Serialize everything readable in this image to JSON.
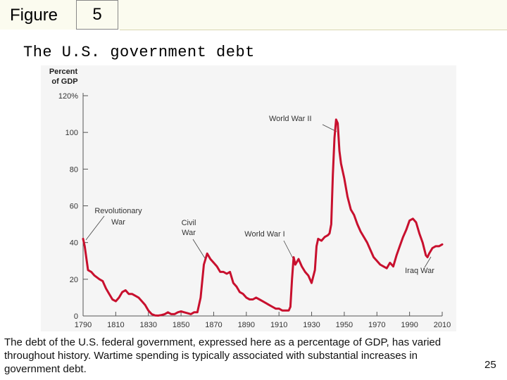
{
  "slide": {
    "figure_label": "Figure",
    "figure_number": "5",
    "title": "The U.S. government debt",
    "caption": "The debt of the U.S. federal government, expressed here as a percentage of GDP, has varied throughout history. Wartime spending is typically associated with substantial increases in government debt.",
    "page_number": "25"
  },
  "chart_data": {
    "type": "line",
    "title": "",
    "xlabel": "",
    "ylabel": "Percent of GDP",
    "ylabel_lines": [
      "Percent",
      "of GDP"
    ],
    "xlim": [
      1790,
      2010
    ],
    "ylim": [
      0,
      120
    ],
    "x_ticks": [
      1790,
      1810,
      1830,
      1850,
      1870,
      1890,
      1910,
      1930,
      1950,
      1970,
      1990,
      2010
    ],
    "y_ticks": [
      {
        "value": 0,
        "label": "0"
      },
      {
        "value": 20,
        "label": "20"
      },
      {
        "value": 40,
        "label": "40"
      },
      {
        "value": 60,
        "label": "60"
      },
      {
        "value": 80,
        "label": "80"
      },
      {
        "value": 100,
        "label": "100"
      },
      {
        "value": 120,
        "label": "120%"
      }
    ],
    "grid": false,
    "line_color": "#c8102e",
    "series": [
      {
        "x": [
          1790,
          1791,
          1793,
          1795,
          1797,
          1800,
          1802,
          1804,
          1806,
          1808,
          1810,
          1812,
          1814,
          1816,
          1818,
          1820,
          1822,
          1824,
          1826,
          1828,
          1830,
          1832,
          1834,
          1836,
          1838,
          1840,
          1842,
          1844,
          1846,
          1848,
          1850,
          1852,
          1854,
          1856,
          1858,
          1860,
          1862,
          1864,
          1866,
          1868,
          1870,
          1872,
          1874,
          1876,
          1878,
          1880,
          1882,
          1884,
          1886,
          1888,
          1890,
          1892,
          1894,
          1896,
          1898,
          1900,
          1902,
          1904,
          1906,
          1908,
          1910,
          1912,
          1914,
          1916,
          1917,
          1918,
          1919,
          1920,
          1922,
          1924,
          1926,
          1928,
          1930,
          1932,
          1933,
          1934,
          1936,
          1938,
          1940,
          1941,
          1942,
          1943,
          1944,
          1945,
          1946,
          1947,
          1948,
          1950,
          1952,
          1954,
          1956,
          1958,
          1960,
          1962,
          1964,
          1966,
          1968,
          1970,
          1972,
          1974,
          1976,
          1978,
          1980,
          1982,
          1984,
          1986,
          1988,
          1990,
          1992,
          1994,
          1996,
          1998,
          2000,
          2001,
          2002,
          2004,
          2006,
          2008,
          2010
        ],
        "y": [
          42,
          38,
          25,
          24,
          22,
          20,
          19,
          15,
          12,
          9,
          8,
          10,
          13,
          14,
          12,
          12,
          11,
          10,
          8,
          6,
          3,
          1,
          0.3,
          0.2,
          0.5,
          1,
          2,
          1,
          1,
          2,
          2.5,
          2,
          1.5,
          1,
          2,
          2,
          10,
          28,
          34,
          31,
          29,
          27,
          24,
          24,
          23,
          24,
          18,
          16,
          13,
          12,
          10,
          9,
          9,
          10,
          9,
          8,
          7,
          6,
          5,
          4,
          4,
          3,
          3,
          3,
          5,
          20,
          32,
          28,
          31,
          27,
          24,
          22,
          18,
          25,
          38,
          42,
          41,
          43,
          44,
          45,
          50,
          77,
          97,
          107,
          105,
          90,
          83,
          75,
          65,
          58,
          55,
          50,
          46,
          43,
          40,
          36,
          32,
          30,
          28,
          27,
          26,
          29,
          27,
          33,
          38,
          43,
          47,
          52,
          53,
          51,
          45,
          40,
          33,
          32,
          34,
          37,
          38,
          38,
          39
        ]
      }
    ],
    "annotations": [
      {
        "lines": [
          "World War II"
        ]
      },
      {
        "lines": [
          "Revolutionary",
          "War"
        ]
      },
      {
        "lines": [
          "Civil",
          "War"
        ]
      },
      {
        "lines": [
          "World War I"
        ]
      },
      {
        "lines": [
          "Iraq War"
        ]
      }
    ]
  }
}
